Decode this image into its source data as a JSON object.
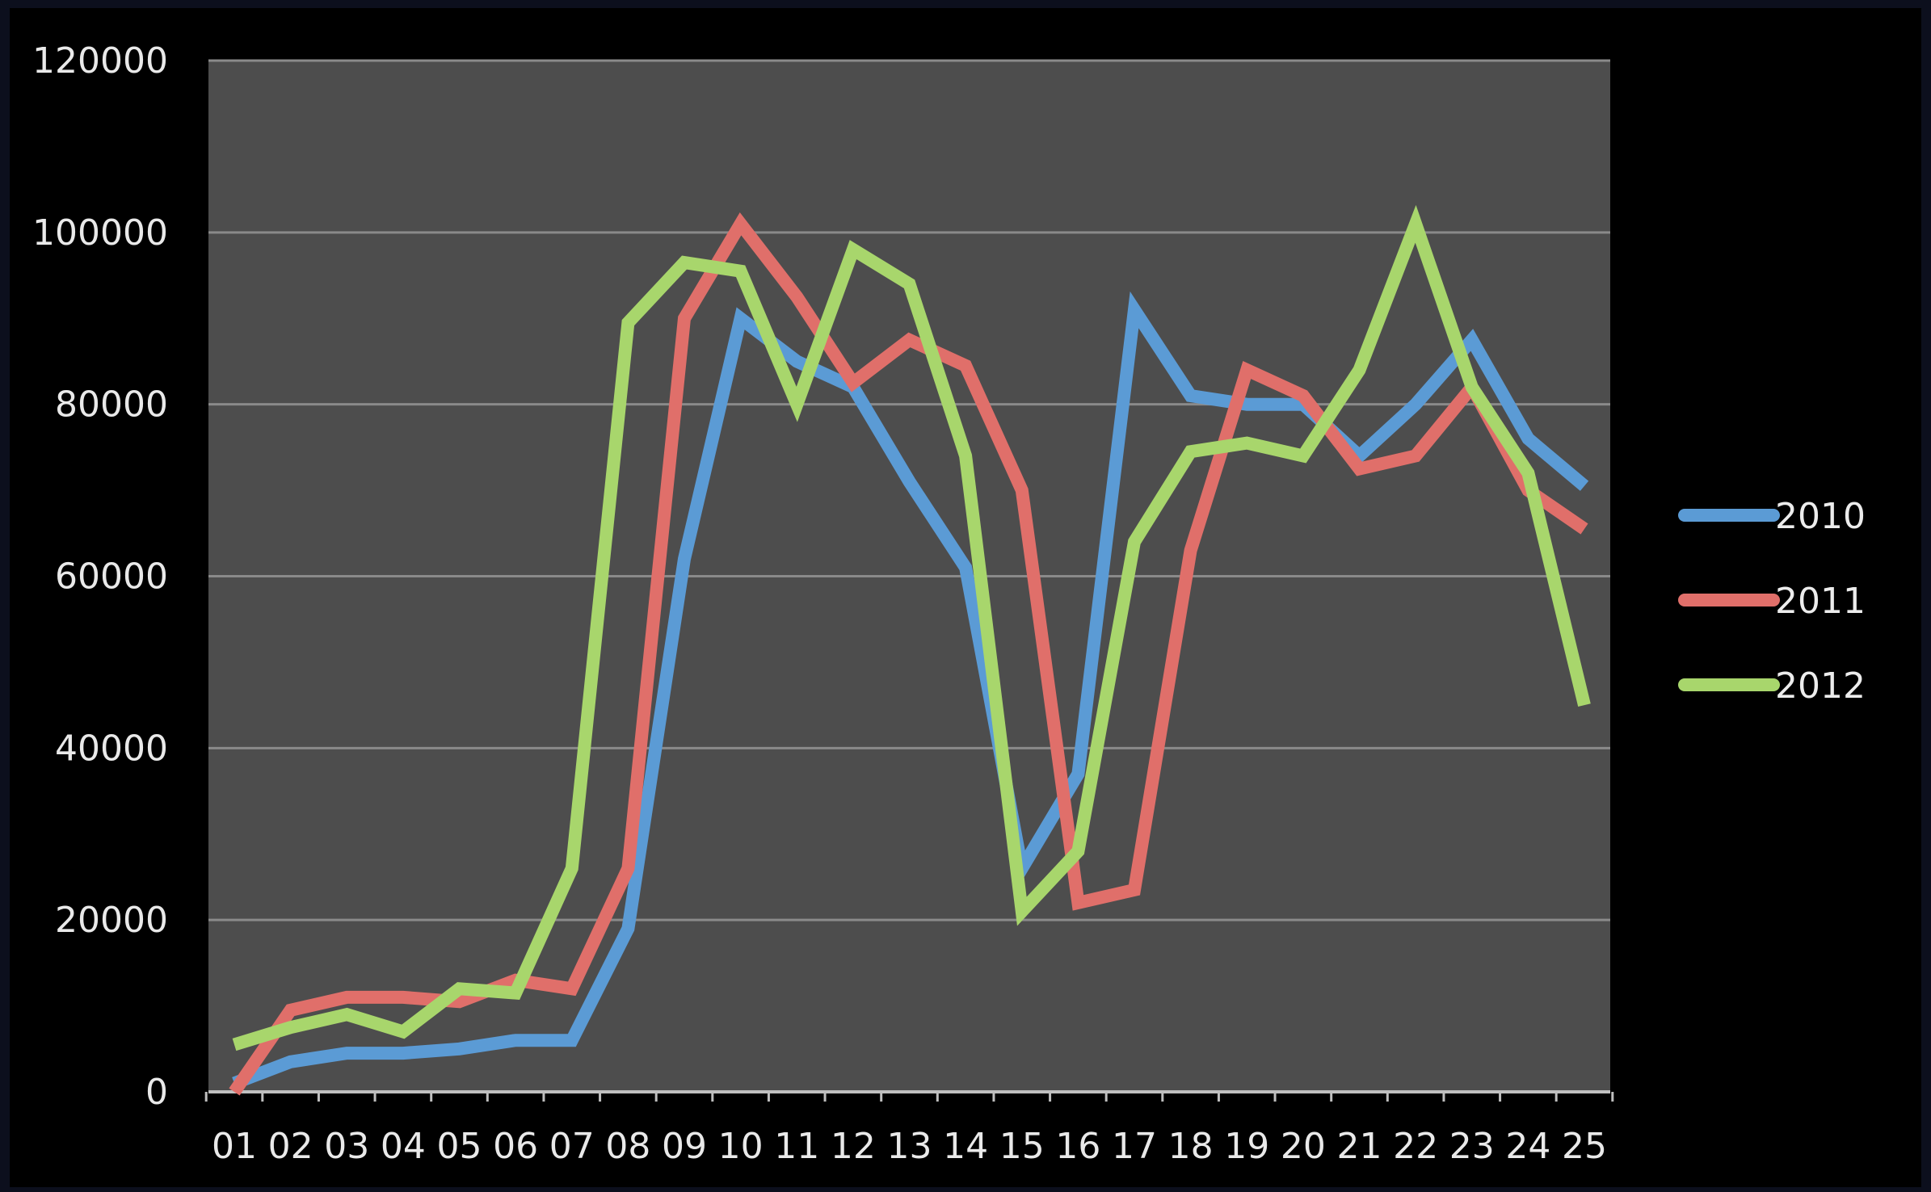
{
  "chart_data": {
    "type": "line",
    "title": "",
    "xlabel": "",
    "ylabel": "",
    "categories": [
      "01",
      "02",
      "03",
      "04",
      "05",
      "06",
      "07",
      "08",
      "09",
      "10",
      "11",
      "12",
      "13",
      "14",
      "15",
      "16",
      "17",
      "18",
      "19",
      "20",
      "21",
      "22",
      "23",
      "24",
      "25"
    ],
    "ylim": [
      0,
      120000
    ],
    "yticks": [
      0,
      20000,
      40000,
      60000,
      80000,
      100000,
      120000
    ],
    "ytick_labels": [
      "0",
      "20000",
      "40000",
      "60000",
      "80000",
      "100000",
      "120000"
    ],
    "grid": "horizontal",
    "legend_position": "right",
    "plot_background": "#4d4d4d",
    "series": [
      {
        "name": "2010",
        "color": "#5b9bd5",
        "values": [
          1000,
          3500,
          4500,
          4500,
          5000,
          6000,
          6000,
          19000,
          62000,
          90000,
          85000,
          82000,
          71000,
          61000,
          26000,
          37000,
          91000,
          81000,
          80000,
          80000,
          74000,
          80000,
          87500,
          76000,
          70500
        ]
      },
      {
        "name": "2011",
        "color": "#e06f6a",
        "values": [
          0,
          9500,
          11000,
          11000,
          10500,
          13000,
          12000,
          26000,
          90000,
          101000,
          92500,
          82500,
          87500,
          84500,
          70000,
          22000,
          23500,
          63000,
          84000,
          81000,
          72500,
          74000,
          82000,
          70000,
          65500
        ]
      },
      {
        "name": "2012",
        "color": "#a8d66c",
        "values": [
          5500,
          7500,
          9000,
          7000,
          12000,
          11500,
          26000,
          89500,
          96500,
          95500,
          80000,
          98000,
          94000,
          74000,
          21000,
          28000,
          64000,
          74500,
          75500,
          74000,
          84000,
          101000,
          82000,
          72000,
          45000
        ]
      }
    ]
  }
}
